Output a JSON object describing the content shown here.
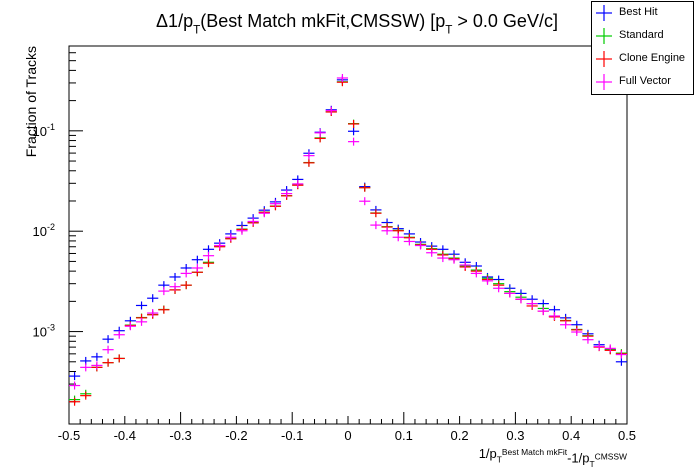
{
  "chart_data": {
    "type": "scatter",
    "title": "Δ1/p_T(Best Match mkFit,CMSSW) [p_T > 0.0 GeV/c]",
    "xlabel": "1/p_T^{Best Match mkFit}-1/p_T^{CMSSW}",
    "ylabel": "Fraction of Tracks",
    "xlim": [
      -0.5,
      0.5
    ],
    "ylim": [
      0.00012,
      0.7
    ],
    "yscale": "log",
    "grid": false,
    "legend_position": "top-right",
    "x_ticks": [
      "-0.5",
      "-0.4",
      "-0.3",
      "-0.2",
      "-0.1",
      "0",
      "0.1",
      "0.2",
      "0.3",
      "0.4",
      "0.5"
    ],
    "y_ticks": [
      {
        "label": "10",
        "exp": "-3",
        "value": 0.001
      },
      {
        "label": "10",
        "exp": "-2",
        "value": 0.01
      },
      {
        "label": "10",
        "exp": "-1",
        "value": 0.1
      }
    ],
    "x": [
      -0.49,
      -0.47,
      -0.45,
      -0.43,
      -0.41,
      -0.39,
      -0.37,
      -0.35,
      -0.33,
      -0.31,
      -0.29,
      -0.27,
      -0.25,
      -0.23,
      -0.21,
      -0.19,
      -0.17,
      -0.15,
      -0.13,
      -0.11,
      -0.09,
      -0.07,
      -0.05,
      -0.03,
      -0.01,
      0.01,
      0.03,
      0.05,
      0.07,
      0.09,
      0.11,
      0.13,
      0.15,
      0.17,
      0.19,
      0.21,
      0.23,
      0.25,
      0.27,
      0.29,
      0.31,
      0.33,
      0.35,
      0.37,
      0.39,
      0.41,
      0.43,
      0.45,
      0.47,
      0.49
    ],
    "series": [
      {
        "name": "Best Hit",
        "color": "#0000ff",
        "values": [
          0.00036,
          0.00051,
          0.00056,
          0.00084,
          0.00102,
          0.00128,
          0.00182,
          0.00215,
          0.0029,
          0.0035,
          0.0043,
          0.0052,
          0.0066,
          0.0076,
          0.0094,
          0.0114,
          0.0135,
          0.0162,
          0.0196,
          0.0257,
          0.0328,
          0.0598,
          0.0968,
          0.162,
          0.322,
          0.099,
          0.0278,
          0.0163,
          0.0122,
          0.0106,
          0.0094,
          0.0078,
          0.0071,
          0.0066,
          0.0059,
          0.0049,
          0.0045,
          0.0035,
          0.0033,
          0.0027,
          0.0024,
          0.0021,
          0.0019,
          0.00165,
          0.00137,
          0.00117,
          0.00095,
          0.00074,
          0.00066,
          0.0005
        ]
      },
      {
        "name": "Standard",
        "color": "#00cc00",
        "values": [
          0.00021,
          0.00024,
          0.00044,
          0.00049,
          0.00054,
          0.00116,
          0.00138,
          0.00148,
          0.00166,
          0.0026,
          0.0029,
          0.0039,
          0.0049,
          0.0071,
          0.0085,
          0.0105,
          0.0122,
          0.0155,
          0.0178,
          0.0226,
          0.0289,
          0.0483,
          0.085,
          0.155,
          0.308,
          0.118,
          0.0272,
          0.0152,
          0.0111,
          0.0102,
          0.0087,
          0.0074,
          0.0067,
          0.0059,
          0.0054,
          0.0045,
          0.0041,
          0.0034,
          0.003,
          0.0025,
          0.0022,
          0.0019,
          0.0017,
          0.00141,
          0.00129,
          0.00105,
          0.00091,
          0.00071,
          0.00066,
          0.00061
        ]
      },
      {
        "name": "Clone Engine",
        "color": "#ff0000",
        "values": [
          0.0002,
          0.00023,
          0.00044,
          0.00049,
          0.00054,
          0.00115,
          0.00137,
          0.00147,
          0.00165,
          0.0026,
          0.0029,
          0.0039,
          0.0048,
          0.007,
          0.0084,
          0.0104,
          0.0121,
          0.0154,
          0.0177,
          0.0225,
          0.0287,
          0.048,
          0.084,
          0.154,
          0.305,
          0.117,
          0.0271,
          0.0151,
          0.011,
          0.0101,
          0.0086,
          0.0073,
          0.0066,
          0.0058,
          0.0053,
          0.0044,
          0.004,
          0.0033,
          0.0029,
          0.0024,
          0.0021,
          0.0018,
          0.0016,
          0.0014,
          0.00128,
          0.00104,
          0.0009,
          0.0007,
          0.00065,
          0.0006
        ]
      },
      {
        "name": "Full Vector",
        "color": "#ff00ff",
        "values": [
          0.00029,
          0.00044,
          0.00046,
          0.00066,
          0.00093,
          0.00113,
          0.00125,
          0.00153,
          0.00253,
          0.0028,
          0.0038,
          0.0043,
          0.0057,
          0.0072,
          0.0087,
          0.0101,
          0.0125,
          0.0151,
          0.0188,
          0.0237,
          0.0296,
          0.0566,
          0.0955,
          0.159,
          0.336,
          0.078,
          0.0199,
          0.0115,
          0.0101,
          0.0087,
          0.0079,
          0.0072,
          0.0061,
          0.0054,
          0.0052,
          0.0046,
          0.0038,
          0.0032,
          0.0027,
          0.0024,
          0.0021,
          0.0019,
          0.0016,
          0.00143,
          0.00117,
          0.00099,
          0.00083,
          0.00071,
          0.00068,
          0.00059
        ]
      }
    ]
  }
}
